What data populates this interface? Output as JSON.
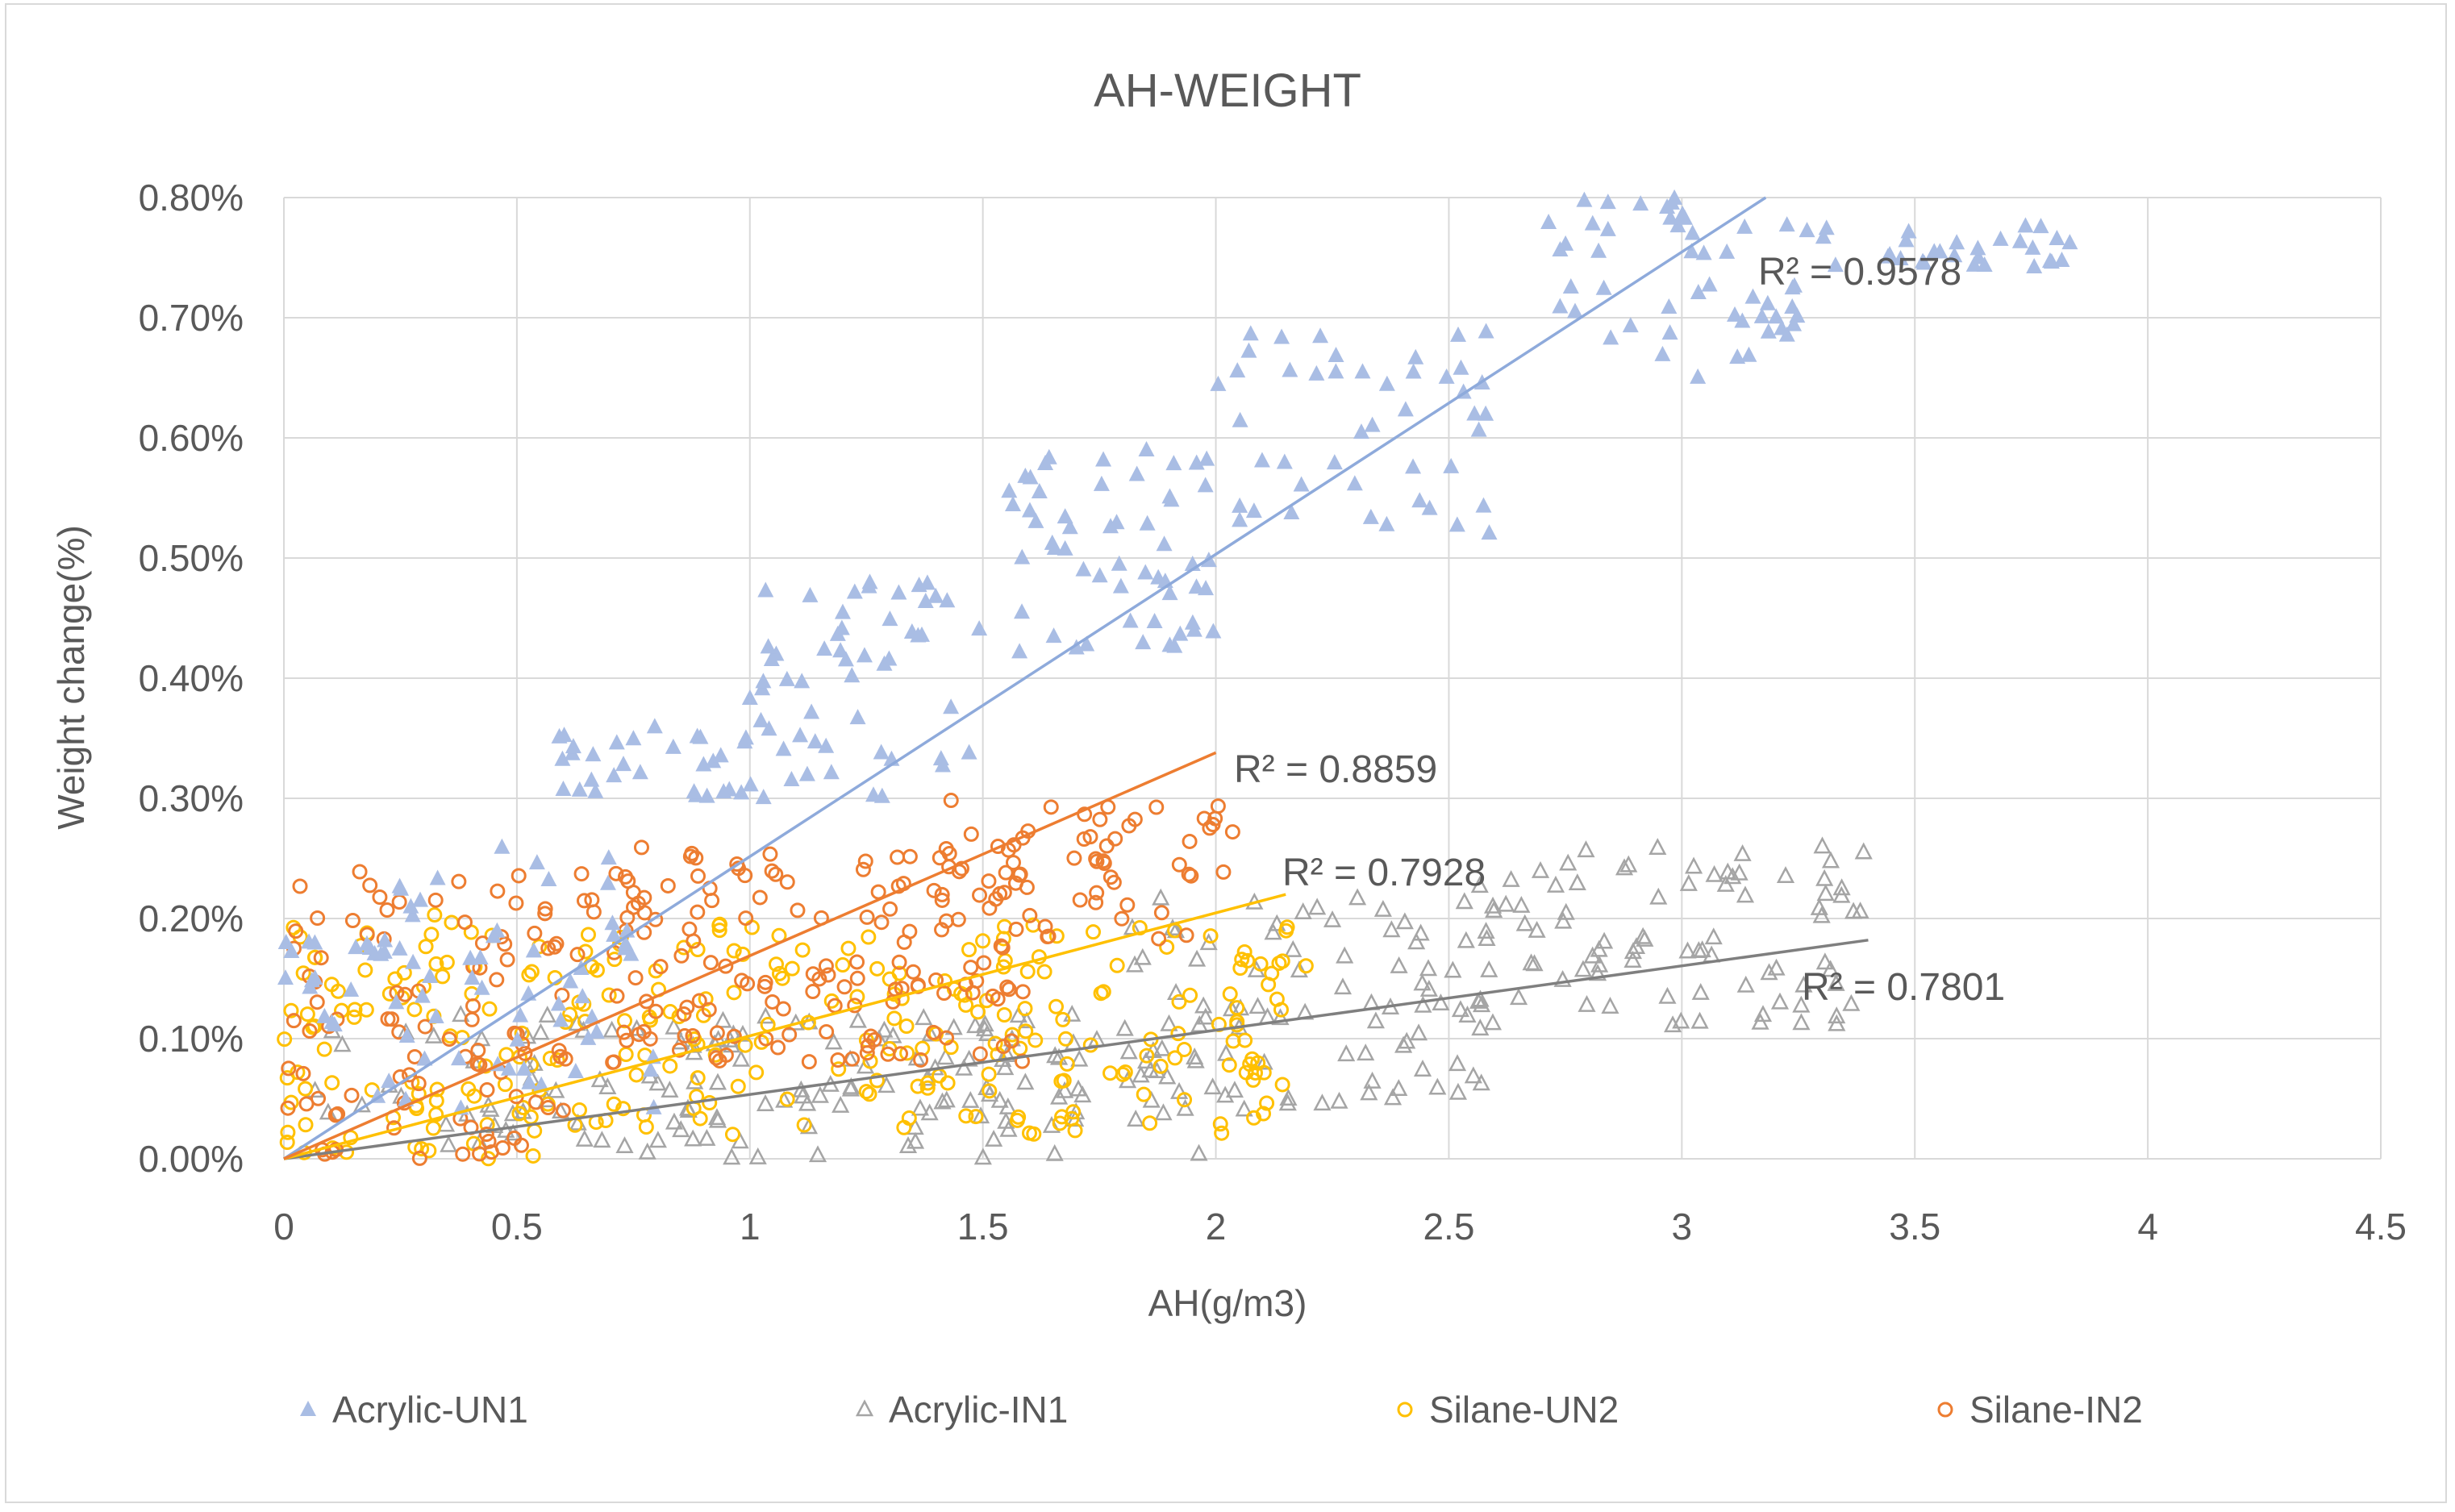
{
  "chart_data": {
    "type": "scatter",
    "title": "AH-WEIGHT",
    "xlabel": "AH(g/m3)",
    "ylabel": "Weight change(%)",
    "xlim": [
      0,
      4.5
    ],
    "ylim": [
      0,
      0.008
    ],
    "x_ticks": [
      "0",
      "0.5",
      "1",
      "1.5",
      "2",
      "2.5",
      "3",
      "3.5",
      "4",
      "4.5"
    ],
    "y_ticks": [
      "0.00%",
      "0.10%",
      "0.20%",
      "0.30%",
      "0.40%",
      "0.50%",
      "0.60%",
      "0.70%",
      "0.80%"
    ],
    "grid": true,
    "legend_position": "bottom",
    "series": [
      {
        "name": "Acrylic-UN1",
        "marker": "filled-triangle",
        "color": "#a9bde4",
        "trend_line": {
          "x_end": 3.18,
          "y_end": 0.008
        },
        "r_squared": "R² = 0.9578",
        "clusters": [
          {
            "x": [
              0.0,
              0.2
            ],
            "y": [
              0.0011,
              0.0019
            ],
            "n": 16
          },
          {
            "x": [
              0.2,
              0.8
            ],
            "y": [
              0.0002,
              0.0026
            ],
            "n": 60
          },
          {
            "x": [
              0.55,
              1.0
            ],
            "y": [
              0.003,
              0.0036
            ],
            "n": 30
          },
          {
            "x": [
              1.0,
              1.5
            ],
            "y": [
              0.003,
              0.0048
            ],
            "n": 55
          },
          {
            "x": [
              1.55,
              2.0
            ],
            "y": [
              0.0042,
              0.0059
            ],
            "n": 55
          },
          {
            "x": [
              2.0,
              2.6
            ],
            "y": [
              0.0052,
              0.0069
            ],
            "n": 45
          },
          {
            "x": [
              2.7,
              3.25
            ],
            "y": [
              0.0065,
              0.008
            ],
            "n": 50
          },
          {
            "x": [
              3.25,
              3.85
            ],
            "y": [
              0.0074,
              0.0078
            ],
            "n": 30
          }
        ]
      },
      {
        "name": "Acrylic-IN1",
        "marker": "hollow-triangle",
        "color": "#a5a5a5",
        "trend_line": {
          "x_end": 3.4,
          "y_end": 0.00182
        },
        "r_squared": "R² = 0.7801",
        "clusters": [
          {
            "x": [
              0.0,
              0.6
            ],
            "y": [
              0.0,
              0.0012
            ],
            "n": 25
          },
          {
            "x": [
              0.5,
              2.0
            ],
            "y": [
              0.0,
              0.0012
            ],
            "n": 130
          },
          {
            "x": [
              1.8,
              2.6
            ],
            "y": [
              0.0004,
              0.0022
            ],
            "n": 90
          },
          {
            "x": [
              2.5,
              3.4
            ],
            "y": [
              0.0011,
              0.0026
            ],
            "n": 85
          }
        ]
      },
      {
        "name": "Silane-UN2",
        "marker": "hollow-circle",
        "color": "#ffc000",
        "trend_line": {
          "x_end": 2.15,
          "y_end": 0.0022
        },
        "r_squared": "R² = 0.7928",
        "clusters": [
          {
            "x": [
              0.0,
              0.6
            ],
            "y": [
              0.0,
              0.0021
            ],
            "n": 90
          },
          {
            "x": [
              0.6,
              2.2
            ],
            "y": [
              0.0002,
              0.002
            ],
            "n": 200
          }
        ]
      },
      {
        "name": "Silane-IN2",
        "marker": "hollow-circle",
        "color": "#ed7d31",
        "trend_line": {
          "x_end": 2.0,
          "y_end": 0.00338
        },
        "r_squared": "R² = 0.8859",
        "clusters": [
          {
            "x": [
              0.0,
              0.6
            ],
            "y": [
              0.0,
              0.0024
            ],
            "n": 95
          },
          {
            "x": [
              0.6,
              1.6
            ],
            "y": [
              0.0008,
              0.0026
            ],
            "n": 150
          },
          {
            "x": [
              1.4,
              2.05
            ],
            "y": [
              0.0018,
              0.003
            ],
            "n": 60
          }
        ]
      }
    ]
  }
}
